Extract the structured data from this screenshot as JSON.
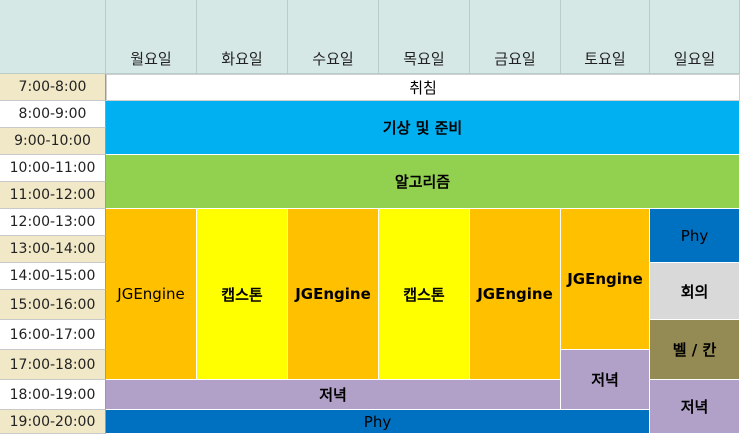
{
  "days": [
    "월요일",
    "화요일",
    "수요일",
    "목요일",
    "금요일",
    "토요일",
    "일요일"
  ],
  "times": [
    "7:00-8:00",
    "8:00-9:00",
    "9:00-10:00",
    "10:00-11:00",
    "11:00-12:00",
    "12:00-13:00",
    "13:00-14:00",
    "14:00-15:00",
    "15:00-16:00",
    "16:00-17:00",
    "17:00-18:00",
    "18:00-19:00",
    "19:00-20:00"
  ],
  "colors": {
    "header": "#d6e8e5",
    "time_alt": "#f1e8c7",
    "wake": "#ffffff",
    "blue": "#00b0f0",
    "green": "#92d050",
    "orange": "#ffc000",
    "yellow": "#ffff00",
    "purple": "#b1a0c7",
    "navy": "#0070c0",
    "gray": "#d9d9d9",
    "olive": "#948a54"
  },
  "events": {
    "wake": "취침",
    "prep": "기상 및 준비",
    "algo": "알고리즘",
    "mon_jge": "JGEngine",
    "tue_cap": "캡스톤",
    "wed_jge": "JGEngine",
    "thu_cap": "캡스톤",
    "fri_jge": "JGEngine",
    "sat_jge": "JGEngine",
    "sun_phy": "Phy",
    "sun_meet": "회의",
    "sun_bel": "벨 / 칸",
    "dinner_week": "저녁",
    "sat_dinner": "저녁",
    "sun_dinner": "저녁",
    "phy_evening": "Phy"
  }
}
